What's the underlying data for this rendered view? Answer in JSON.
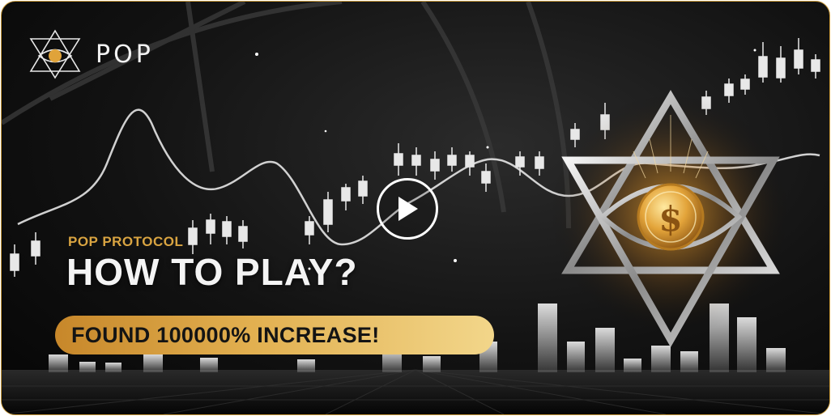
{
  "brand": {
    "name": "POP",
    "logo_icon": "eye-star-coin-icon"
  },
  "banner": {
    "kicker": "POP PROTOCOL",
    "headline": "HOW TO PLAY?",
    "cta_text": "FOUND 100000% INCREASE!"
  },
  "player": {
    "play_icon": "play-icon"
  },
  "emblem": {
    "icon": "star-of-david-eye-coin-icon",
    "coin_symbol": "$"
  },
  "colors": {
    "gold": "#e2b050",
    "gold_dark": "#c7872a",
    "frame": "#c99a3a",
    "background": "#121212"
  }
}
